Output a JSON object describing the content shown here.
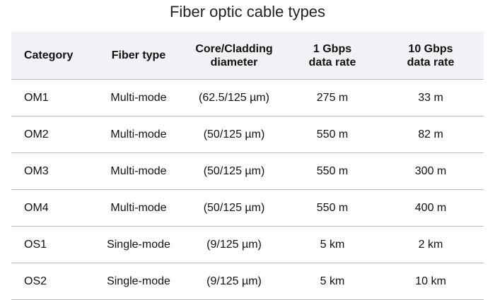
{
  "title": "Fiber optic cable types",
  "table": {
    "header": [
      "Category",
      "Fiber type",
      "Core/Cladding\ndiameter",
      "1 Gbps\ndata rate",
      "10 Gbps\ndata rate"
    ],
    "rows": [
      [
        "OM1",
        "Multi-mode",
        "(62.5/125 µm)",
        "275 m",
        "33 m"
      ],
      [
        "OM2",
        "Multi-mode",
        "(50/125 µm)",
        "550 m",
        "82 m"
      ],
      [
        "OM3",
        "Multi-mode",
        "(50/125 µm)",
        "550 m",
        "300 m"
      ],
      [
        "OM4",
        "Multi-mode",
        "(50/125 µm)",
        "550 m",
        "400 m"
      ],
      [
        "OS1",
        "Single-mode",
        "(9/125 µm)",
        "5 km",
        "2 km"
      ],
      [
        "OS2",
        "Single-mode",
        "(9/125 µm)",
        "5 km",
        "10 km"
      ]
    ]
  }
}
